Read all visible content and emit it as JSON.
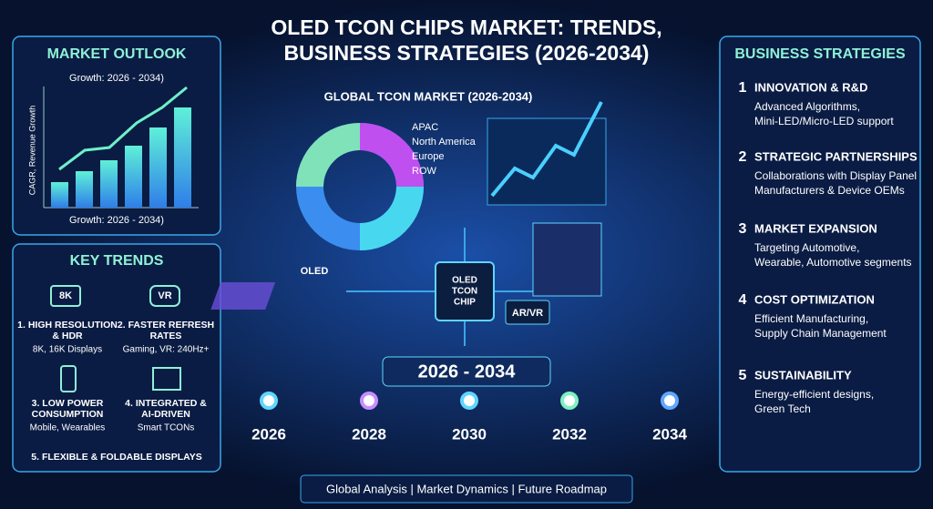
{
  "header": {
    "title_lines": [
      "OLED TCON CHIPS MARKET: TRENDS,",
      "BUSINESS STRATEGIES (2026-2034)"
    ]
  },
  "market_outlook": {
    "title": "MARKET OUTLOOK",
    "top_label": "Growth: 2026 - 2034)",
    "y_label": "CAGR, Revenue Growth",
    "bottom_label": "Growth: 2026 - 2034)"
  },
  "key_trends": {
    "title": "KEY TRENDS",
    "icons": [
      "8K",
      "VR"
    ],
    "items": [
      {
        "title_lines": [
          "1. HIGH RESOLUTION",
          "& HDR"
        ],
        "desc": "8K, 16K Displays"
      },
      {
        "title_lines": [
          "2. FASTER REFRESH",
          "RATES"
        ],
        "desc": "Gaming, VR: 240Hz+"
      },
      {
        "title_lines": [
          "3. LOW POWER",
          "CONSUMPTION"
        ],
        "desc": "Mobile, Wearables"
      },
      {
        "title_lines": [
          "4. INTEGRATED &",
          "AI-DRIVEN"
        ],
        "desc": "Smart TCONs"
      },
      {
        "title_lines": [
          "5. FLEXIBLE & FOLDABLE DISPLAYS"
        ],
        "desc": null
      }
    ]
  },
  "global_market": {
    "title": "GLOBAL TCON MARKET (2026-2034)",
    "legend": [
      "APAC",
      "North America",
      "Europe",
      "ROW"
    ]
  },
  "center": {
    "oled_label": "OLED",
    "chip_lines": [
      "OLED",
      "TCON",
      "CHIP"
    ],
    "arvr_label": "AR/VR"
  },
  "timeline": {
    "range": "2026 - 2034",
    "years": [
      2026,
      2028,
      2030,
      2032,
      2034
    ]
  },
  "business_strategies": {
    "title": "BUSINESS STRATEGIES",
    "items": [
      {
        "number": 1,
        "title": "INNOVATION & R&D",
        "desc_lines": [
          "Advanced Algorithms,",
          "Mini-LED/Micro-LED support"
        ]
      },
      {
        "number": 2,
        "title": "STRATEGIC PARTNERSHIPS",
        "desc_lines": [
          "Collaborations with Display Panel",
          "Manufacturers & Device OEMs"
        ]
      },
      {
        "number": 3,
        "title": "MARKET EXPANSION",
        "desc_lines": [
          "Targeting Automotive,",
          "Wearable, Automotive segments"
        ]
      },
      {
        "number": 4,
        "title": "COST OPTIMIZATION",
        "desc_lines": [
          "Efficient Manufacturing,",
          "Supply Chain Management"
        ]
      },
      {
        "number": 5,
        "title": "SUSTAINABILITY",
        "desc_lines": [
          "Energy-efficient designs,",
          "Green Tech"
        ]
      }
    ]
  },
  "footer": {
    "text": "Global Analysis | Market Dynamics | Future Roadmap"
  }
}
